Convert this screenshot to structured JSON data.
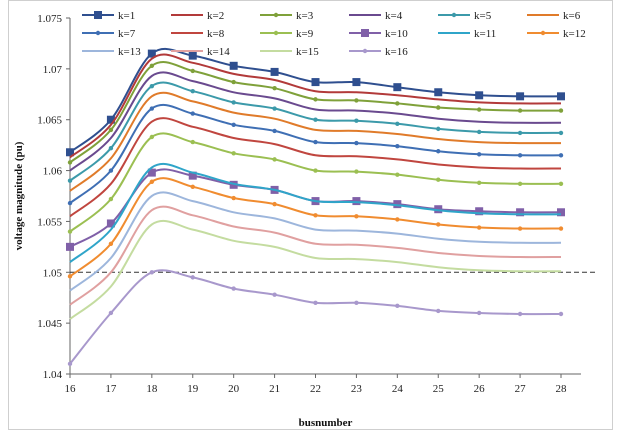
{
  "chart_data": {
    "type": "line",
    "title": "",
    "xlabel": "busnumber",
    "ylabel": "voltage magnitude (pu)",
    "x": [
      16,
      17,
      18,
      19,
      20,
      21,
      22,
      23,
      24,
      25,
      26,
      27,
      28
    ],
    "x_ticks": [
      "16",
      "17",
      "18",
      "19",
      "20",
      "21",
      "22",
      "23",
      "24",
      "25",
      "26",
      "27",
      "28"
    ],
    "ylim": [
      1.04,
      1.075
    ],
    "y_ticks": [
      "1.04",
      "1.045",
      "1.05",
      "1.055",
      "1.06",
      "1.065",
      "1.07",
      "1.075"
    ],
    "reference_line": {
      "y": 1.05,
      "style": "dashed"
    },
    "grid": false,
    "legend_position": "top",
    "series": [
      {
        "name": "k=1",
        "color": "#2f4f8f",
        "marker": "square",
        "values": [
          1.0618,
          1.065,
          1.0715,
          1.0713,
          1.0703,
          1.0697,
          1.0687,
          1.0687,
          1.0682,
          1.0677,
          1.0674,
          1.0673,
          1.0673
        ]
      },
      {
        "name": "k=2",
        "color": "#b23a3a",
        "marker": "none",
        "values": [
          1.0613,
          1.0645,
          1.071,
          1.0706,
          1.0695,
          1.0689,
          1.0678,
          1.0677,
          1.0674,
          1.067,
          1.0667,
          1.0666,
          1.0666
        ]
      },
      {
        "name": "k=3",
        "color": "#7fa13a",
        "marker": "dot",
        "values": [
          1.0608,
          1.064,
          1.0703,
          1.0698,
          1.0687,
          1.0681,
          1.067,
          1.0669,
          1.0666,
          1.0662,
          1.066,
          1.0659,
          1.0659
        ]
      },
      {
        "name": "k=4",
        "color": "#6a4a8f",
        "marker": "none",
        "values": [
          1.06,
          1.0632,
          1.0693,
          1.0688,
          1.0677,
          1.0671,
          1.066,
          1.0659,
          1.0656,
          1.0651,
          1.0648,
          1.0647,
          1.0647
        ]
      },
      {
        "name": "k=5",
        "color": "#3c9aaa",
        "marker": "dot",
        "values": [
          1.059,
          1.0622,
          1.0683,
          1.0678,
          1.0667,
          1.0661,
          1.065,
          1.0649,
          1.0646,
          1.0641,
          1.0638,
          1.0637,
          1.0637
        ]
      },
      {
        "name": "k=6",
        "color": "#e07b2a",
        "marker": "none",
        "values": [
          1.058,
          1.0612,
          1.0673,
          1.0668,
          1.0657,
          1.0651,
          1.064,
          1.0639,
          1.0636,
          1.0631,
          1.0628,
          1.0627,
          1.0627
        ]
      },
      {
        "name": "k=7",
        "color": "#3f6fb4",
        "marker": "dot",
        "values": [
          1.0568,
          1.06,
          1.0661,
          1.0656,
          1.0645,
          1.0639,
          1.0628,
          1.0627,
          1.0624,
          1.0619,
          1.0616,
          1.0615,
          1.0615
        ]
      },
      {
        "name": "k=8",
        "color": "#c0463f",
        "marker": "none",
        "values": [
          1.0555,
          1.0587,
          1.0648,
          1.0643,
          1.0632,
          1.0626,
          1.0615,
          1.0614,
          1.0611,
          1.0606,
          1.0603,
          1.0602,
          1.0602
        ]
      },
      {
        "name": "k=9",
        "color": "#9bbf52",
        "marker": "dot",
        "values": [
          1.054,
          1.0572,
          1.0633,
          1.0628,
          1.0617,
          1.0611,
          1.06,
          1.0599,
          1.0596,
          1.0591,
          1.0588,
          1.0587,
          1.0587
        ]
      },
      {
        "name": "k=10",
        "color": "#8060a8",
        "marker": "square",
        "values": [
          1.0525,
          1.0548,
          1.0598,
          1.0595,
          1.0586,
          1.0581,
          1.057,
          1.057,
          1.0567,
          1.0562,
          1.056,
          1.0559,
          1.0559
        ]
      },
      {
        "name": "k=11",
        "color": "#2fa5c9",
        "marker": "none",
        "values": [
          1.051,
          1.0542,
          1.0603,
          1.0598,
          1.0587,
          1.0581,
          1.057,
          1.0569,
          1.0566,
          1.0561,
          1.0558,
          1.0557,
          1.0557
        ]
      },
      {
        "name": "k=12",
        "color": "#f08c30",
        "marker": "dot",
        "values": [
          1.0496,
          1.0528,
          1.0589,
          1.0584,
          1.0573,
          1.0567,
          1.0556,
          1.0555,
          1.0552,
          1.0547,
          1.0544,
          1.0543,
          1.0543
        ]
      },
      {
        "name": "k=13",
        "color": "#9db6dc",
        "marker": "none",
        "values": [
          1.0482,
          1.0514,
          1.0575,
          1.057,
          1.0559,
          1.0553,
          1.0542,
          1.0541,
          1.0538,
          1.0533,
          1.053,
          1.0529,
          1.0529
        ]
      },
      {
        "name": "k=14",
        "color": "#e0a0a0",
        "marker": "none",
        "values": [
          1.0468,
          1.05,
          1.0561,
          1.0556,
          1.0545,
          1.0539,
          1.0528,
          1.0527,
          1.0524,
          1.0519,
          1.0516,
          1.0515,
          1.0515
        ]
      },
      {
        "name": "k=15",
        "color": "#c4dca0",
        "marker": "none",
        "values": [
          1.0454,
          1.0486,
          1.0547,
          1.0542,
          1.0531,
          1.0525,
          1.0514,
          1.0513,
          1.051,
          1.0505,
          1.0502,
          1.0501,
          1.0501
        ]
      },
      {
        "name": "k=16",
        "color": "#a898cc",
        "marker": "dot",
        "values": [
          1.041,
          1.046,
          1.05,
          1.0495,
          1.0484,
          1.0478,
          1.047,
          1.047,
          1.0467,
          1.0462,
          1.046,
          1.0459,
          1.0459
        ]
      }
    ]
  }
}
